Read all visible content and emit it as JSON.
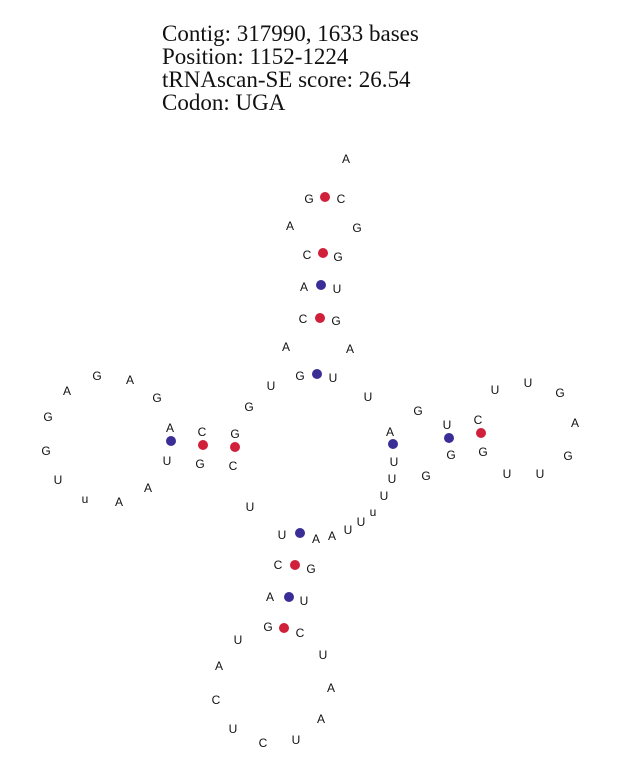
{
  "header": {
    "contig": "Contig: 317990, 1633 bases",
    "position": "Position: 1152-1224",
    "score": "tRNAscan-SE score: 26.54",
    "codon": "Codon: UGA"
  },
  "colors": {
    "gc_pair": "#d0203a",
    "au_pair": "#3a2d96",
    "text": "#111111"
  },
  "bases": [
    {
      "id": "b1",
      "letter": "A"
    },
    {
      "id": "b2",
      "letter": "G"
    },
    {
      "id": "b3",
      "letter": "C"
    },
    {
      "id": "b4",
      "letter": "A"
    },
    {
      "id": "b5",
      "letter": "G"
    },
    {
      "id": "b6",
      "letter": "C"
    },
    {
      "id": "b7",
      "letter": "G"
    },
    {
      "id": "b8",
      "letter": "A"
    },
    {
      "id": "b9",
      "letter": "U"
    },
    {
      "id": "b10",
      "letter": "C"
    },
    {
      "id": "b11",
      "letter": "G"
    },
    {
      "id": "b12",
      "letter": "A"
    },
    {
      "id": "b13",
      "letter": "A"
    },
    {
      "id": "b14",
      "letter": "G"
    },
    {
      "id": "b15",
      "letter": "U"
    },
    {
      "id": "b16",
      "letter": "U"
    },
    {
      "id": "b17",
      "letter": "G"
    },
    {
      "id": "b18",
      "letter": "U"
    },
    {
      "id": "b19",
      "letter": "A"
    },
    {
      "id": "b20",
      "letter": "G"
    },
    {
      "id": "b21",
      "letter": "A"
    },
    {
      "id": "b22",
      "letter": "G"
    },
    {
      "id": "b23",
      "letter": "G"
    },
    {
      "id": "b24",
      "letter": "G"
    },
    {
      "id": "b25",
      "letter": "U"
    },
    {
      "id": "b26",
      "letter": "u"
    },
    {
      "id": "b27",
      "letter": "A"
    },
    {
      "id": "b28",
      "letter": "A"
    },
    {
      "id": "b29",
      "letter": "A"
    },
    {
      "id": "b30",
      "letter": "U"
    },
    {
      "id": "b31",
      "letter": "C"
    },
    {
      "id": "b32",
      "letter": "G"
    },
    {
      "id": "b33",
      "letter": "G"
    },
    {
      "id": "b34",
      "letter": "C"
    },
    {
      "id": "b35",
      "letter": "U"
    },
    {
      "id": "b36",
      "letter": "G"
    },
    {
      "id": "b37",
      "letter": "A"
    },
    {
      "id": "b38",
      "letter": "U"
    },
    {
      "id": "b39",
      "letter": "U"
    },
    {
      "id": "b40",
      "letter": "U"
    },
    {
      "id": "b41",
      "letter": "u"
    },
    {
      "id": "b42",
      "letter": "U"
    },
    {
      "id": "b43",
      "letter": "G"
    },
    {
      "id": "b44",
      "letter": "U"
    },
    {
      "id": "b45",
      "letter": "G"
    },
    {
      "id": "b46",
      "letter": "C"
    },
    {
      "id": "b47",
      "letter": "G"
    },
    {
      "id": "b48",
      "letter": "U"
    },
    {
      "id": "b49",
      "letter": "U"
    },
    {
      "id": "b50",
      "letter": "U"
    },
    {
      "id": "b51",
      "letter": "G"
    },
    {
      "id": "b52",
      "letter": "A"
    },
    {
      "id": "b53",
      "letter": "G"
    },
    {
      "id": "b54",
      "letter": "U"
    },
    {
      "id": "b55",
      "letter": "U"
    },
    {
      "id": "b56",
      "letter": "A"
    },
    {
      "id": "b57",
      "letter": "A"
    },
    {
      "id": "b58",
      "letter": "U"
    },
    {
      "id": "b59",
      "letter": "C"
    },
    {
      "id": "b60",
      "letter": "G"
    },
    {
      "id": "b61",
      "letter": "A"
    },
    {
      "id": "b62",
      "letter": "U"
    },
    {
      "id": "b63",
      "letter": "G"
    },
    {
      "id": "b64",
      "letter": "C"
    },
    {
      "id": "b65",
      "letter": "U"
    },
    {
      "id": "b66",
      "letter": "U"
    },
    {
      "id": "b67",
      "letter": "A"
    },
    {
      "id": "b68",
      "letter": "A"
    },
    {
      "id": "b69",
      "letter": "C"
    },
    {
      "id": "b70",
      "letter": "A"
    },
    {
      "id": "b71",
      "letter": "U"
    },
    {
      "id": "b72",
      "letter": "C"
    },
    {
      "id": "b73",
      "letter": "U"
    }
  ],
  "pairs": [
    {
      "id": "p1",
      "type": "GC"
    },
    {
      "id": "p2",
      "type": "GC"
    },
    {
      "id": "p3",
      "type": "AU"
    },
    {
      "id": "p4",
      "type": "GC"
    },
    {
      "id": "p5",
      "type": "GU"
    },
    {
      "id": "p6",
      "type": "AU"
    },
    {
      "id": "p7",
      "type": "GC"
    },
    {
      "id": "p8",
      "type": "GC"
    },
    {
      "id": "p9",
      "type": "AU"
    },
    {
      "id": "p10",
      "type": "UG"
    },
    {
      "id": "p11",
      "type": "CG"
    },
    {
      "id": "p12",
      "type": "UA"
    },
    {
      "id": "p13",
      "type": "CG"
    },
    {
      "id": "p14",
      "type": "AU"
    },
    {
      "id": "p15",
      "type": "GC"
    }
  ]
}
